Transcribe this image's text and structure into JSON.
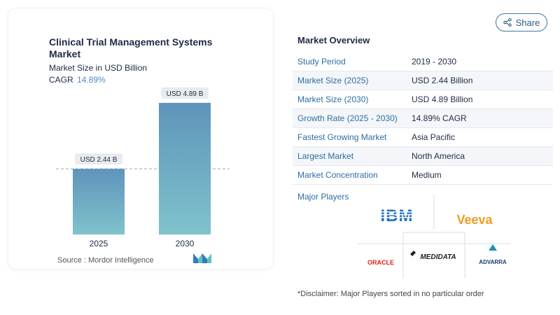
{
  "header": {
    "share_label": "Share",
    "share_icon": "share-icon"
  },
  "chart_data": {
    "type": "bar",
    "title": "Clinical Trial Management Systems Market",
    "subtitle": "Market Size in USD Billion",
    "cagr_label": "CAGR",
    "cagr_value": "14.89%",
    "categories": [
      "2025",
      "2030"
    ],
    "values": [
      2.44,
      4.89
    ],
    "data_labels": [
      "USD 2.44 B",
      "USD 4.89 B"
    ],
    "ylim": [
      0,
      5.2
    ],
    "colors": {
      "bar_top": "#5f94bb",
      "bar_bottom": "#7fc3cc",
      "label_bg": "#e9ebee",
      "dashed_line": "#9aa7b5"
    },
    "source": "Source :  Mordor Intelligence"
  },
  "overview": {
    "title": "Market Overview",
    "rows": [
      {
        "label": "Study Period",
        "value": "2019 - 2030"
      },
      {
        "label": "Market Size (2025)",
        "value": "USD 2.44 Billion"
      },
      {
        "label": "Market Size (2030)",
        "value": "USD 4.89 Billion"
      },
      {
        "label": "Growth Rate (2025 - 2030)",
        "value": "14.89% CAGR"
      },
      {
        "label": "Fastest Growing Market",
        "value": "Asia Pacific"
      },
      {
        "label": "Largest Market",
        "value": "North America"
      },
      {
        "label": "Market Concentration",
        "value": "Medium"
      }
    ],
    "players_title": "Major Players",
    "players": [
      "IBM",
      "Veeva",
      "ORACLE",
      "MEDIDATA",
      "ADVARRA"
    ],
    "disclaimer": "*Disclaimer: Major Players sorted in no particular order"
  }
}
